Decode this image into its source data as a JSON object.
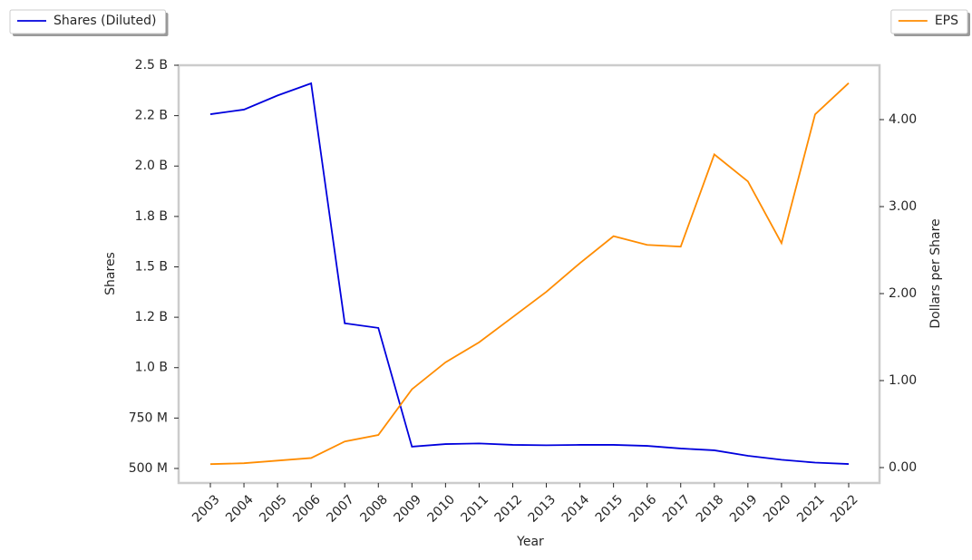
{
  "chart_data": {
    "type": "line",
    "x_label": "Year",
    "y_label": "Shares",
    "y2_label": "Dollars per Share",
    "categories": [
      "2003",
      "2004",
      "2005",
      "2006",
      "2007",
      "2008",
      "2009",
      "2010",
      "2011",
      "2012",
      "2013",
      "2014",
      "2015",
      "2016",
      "2017",
      "2018",
      "2019",
      "2020",
      "2021",
      "2022"
    ],
    "ylim": [
      428000000,
      2500000000
    ],
    "yticks": [
      {
        "value": 500000000,
        "label": "500 M"
      },
      {
        "value": 750000000,
        "label": "750 M"
      },
      {
        "value": 1000000000,
        "label": "1.0 B"
      },
      {
        "value": 1250000000,
        "label": "1.2 B"
      },
      {
        "value": 1500000000,
        "label": "1.5 B"
      },
      {
        "value": 1750000000,
        "label": "1.8 B"
      },
      {
        "value": 2000000000,
        "label": "2.0 B"
      },
      {
        "value": 2250000000,
        "label": "2.2 B"
      },
      {
        "value": 2500000000,
        "label": "2.5 B"
      }
    ],
    "y2lim": [
      -0.177,
      4.625
    ],
    "y2ticks": [
      {
        "value": 0,
        "label": "0.00"
      },
      {
        "value": 1,
        "label": "1.00"
      },
      {
        "value": 2,
        "label": "2.00"
      },
      {
        "value": 3,
        "label": "3.00"
      },
      {
        "value": 4,
        "label": "4.00"
      }
    ],
    "series": [
      {
        "name": "Shares (Diluted)",
        "color": "#0000dd",
        "legend": "upper left",
        "values": [
          2257000000,
          2280000000,
          2350000000,
          2410000000,
          1220000000,
          1197000000,
          608000000,
          621000000,
          624000000,
          617000000,
          615000000,
          617000000,
          617000000,
          612000000,
          599000000,
          590000000,
          563000000,
          543000000,
          529000000,
          522000000
        ]
      },
      {
        "name": "EPS",
        "color": "#ff8c00",
        "axis": "y2",
        "legend": "upper right",
        "values": [
          0.04,
          0.05,
          0.08,
          0.11,
          0.3,
          0.375,
          0.9,
          1.21,
          1.44,
          1.73,
          2.02,
          2.35,
          2.66,
          2.56,
          2.54,
          3.6,
          3.29,
          2.58,
          4.06,
          4.42
        ]
      }
    ]
  }
}
